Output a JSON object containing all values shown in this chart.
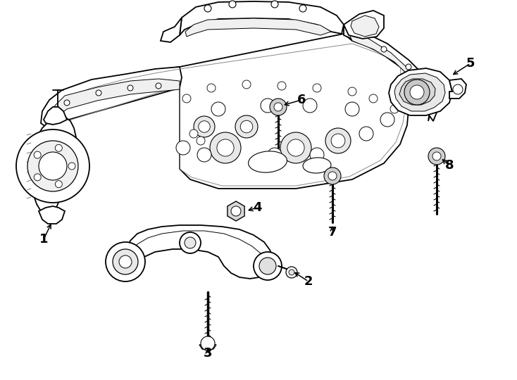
{
  "bg_color": "#ffffff",
  "line_color": "#000000",
  "fig_width": 7.34,
  "fig_height": 5.4,
  "dpi": 100,
  "lw_main": 1.3,
  "lw_thin": 0.7,
  "lw_thick": 1.8
}
